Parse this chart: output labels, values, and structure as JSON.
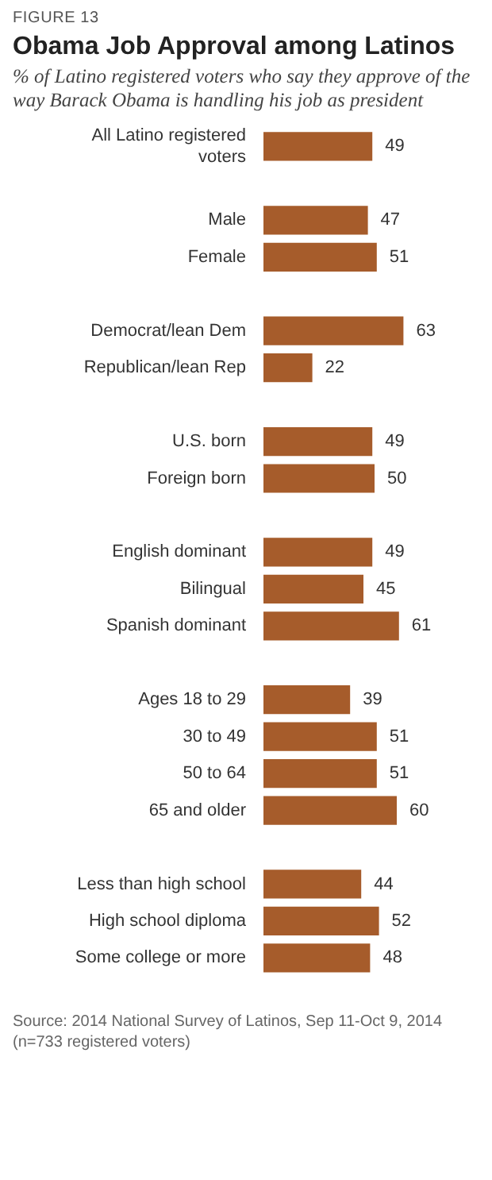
{
  "chart_data": {
    "type": "bar",
    "orientation": "horizontal",
    "title": "Obama Job Approval among Latinos",
    "subtitle": "% of Latino registered voters who say they approve of the way Barack Obama is handling his job as president",
    "categories": [
      "All Latino registered voters",
      null,
      "Male",
      "Female",
      null,
      "Democrat/lean Dem",
      "Republican/lean Rep",
      null,
      "U.S. born",
      "Foreign born",
      null,
      "English dominant",
      "Bilingual",
      "Spanish dominant",
      null,
      "Ages 18 to 29",
      "30 to 49",
      "50 to 64",
      "65 and older",
      null,
      "Less than high school",
      "High school diploma",
      "Some college or more"
    ],
    "values": [
      49,
      null,
      47,
      51,
      null,
      63,
      22,
      null,
      49,
      50,
      null,
      49,
      45,
      61,
      null,
      39,
      51,
      51,
      60,
      null,
      44,
      52,
      48
    ],
    "color": "#a65c2b",
    "data_labels": true,
    "legend": false,
    "annotations": [
      "FIGURE 13",
      "Source: 2014 National Survey of Latinos, Sep 11-Oct 9, 2014 (n=733 registered voters)"
    ]
  }
}
